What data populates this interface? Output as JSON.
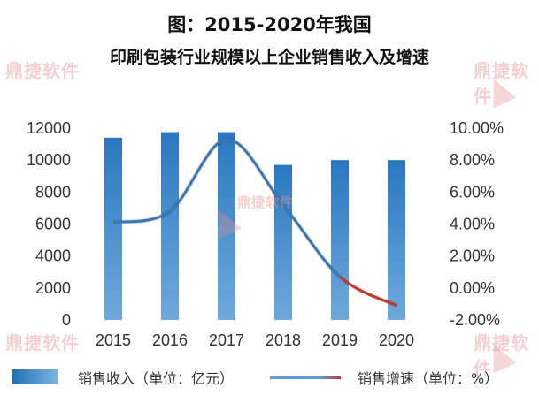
{
  "watermark": {
    "text": "鼎捷软件"
  },
  "chart_data": {
    "type": "bar",
    "title_line1": "图：2015-2020年我国",
    "title_line2": "印刷包装行业规模以上企业销售收入及增速",
    "categories": [
      "2015",
      "2016",
      "2017",
      "2018",
      "2019",
      "2020"
    ],
    "series": [
      {
        "name": "销售收入（单位：亿元）",
        "type": "bar",
        "axis": "left",
        "values": [
          11400,
          11750,
          11750,
          9700,
          10000,
          10000
        ],
        "color": "#2e7fc4"
      },
      {
        "name": "销售增速（单位：%）",
        "type": "line",
        "axis": "right",
        "smooth": true,
        "values": [
          4.1,
          4.8,
          9.3,
          5.2,
          0.7,
          -1.1
        ],
        "color": "#3a78b5",
        "tail_color": "#c0392b"
      }
    ],
    "y_left": {
      "min": 0,
      "max": 12000,
      "ticks": [
        "0",
        "2000",
        "4000",
        "6000",
        "8000",
        "10000",
        "12000"
      ]
    },
    "y_right": {
      "min": -2,
      "max": 10,
      "ticks": [
        "-2.00%",
        "0.00%",
        "2.00%",
        "4.00%",
        "6.00%",
        "8.00%",
        "10.00%"
      ]
    },
    "grid": false,
    "legend_position": "bottom"
  }
}
